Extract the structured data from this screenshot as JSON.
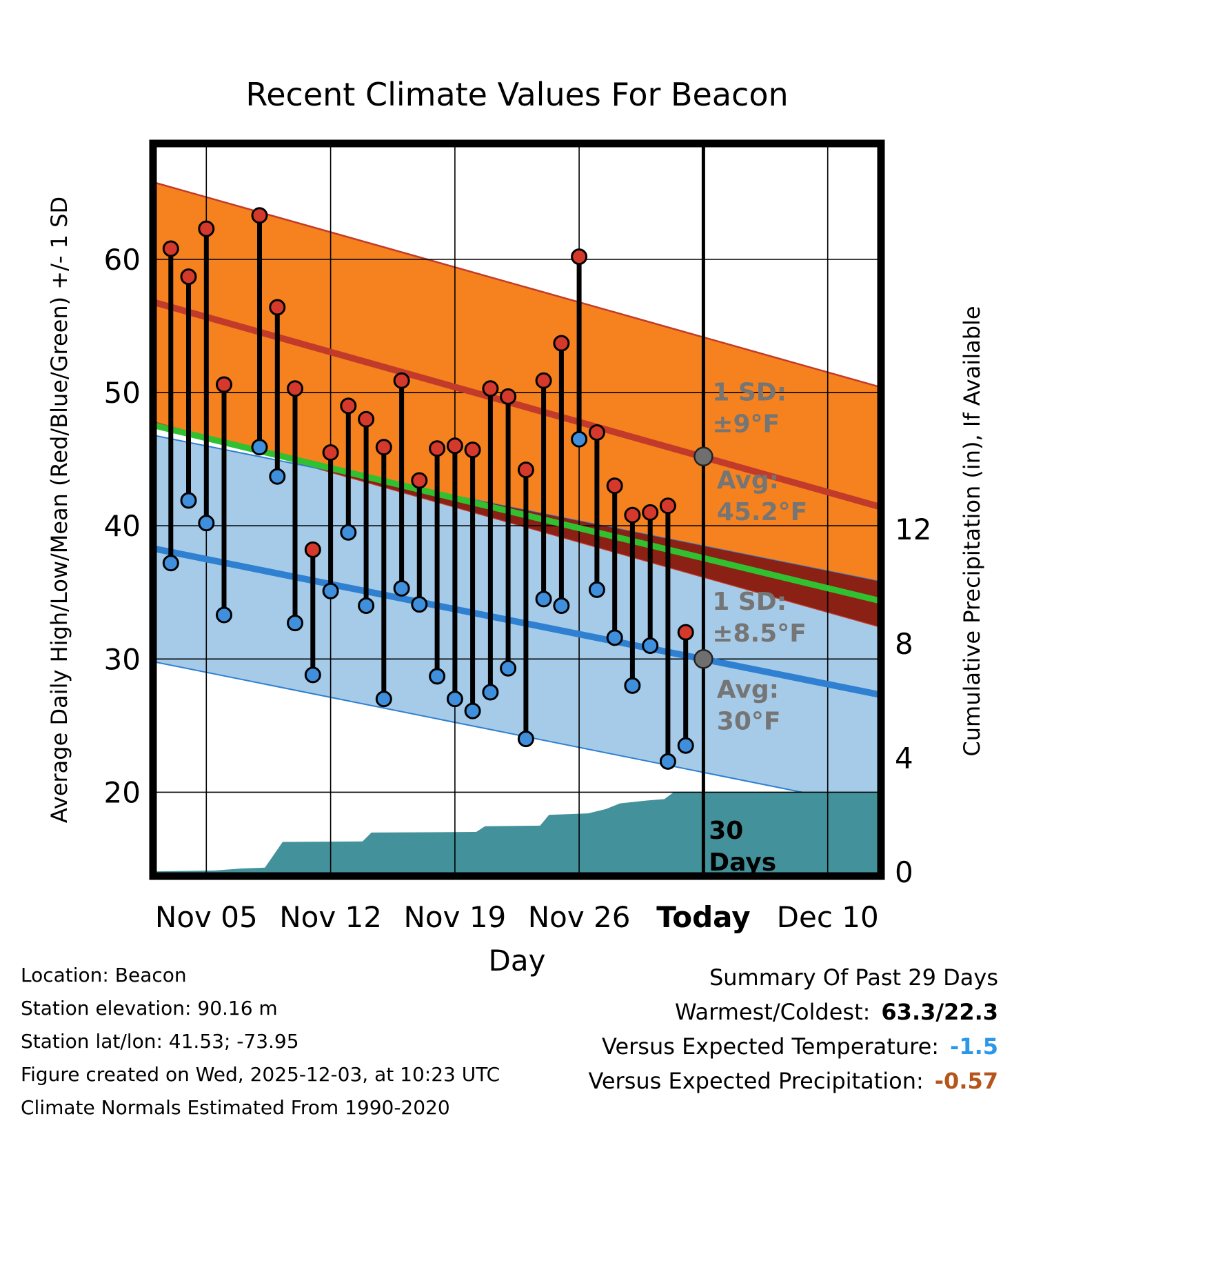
{
  "title": "Recent Climate Values For Beacon",
  "axes": {
    "left_label": "Average Daily High/Low/Mean (Red/Blue/Green) +/- 1 SD",
    "right_label": "Cumulative Precipitation (in), If Available",
    "x_label": "Day"
  },
  "footer": {
    "location": "Location: Beacon",
    "elevation": "Station elevation: 90.16 m",
    "latlon": "Station lat/lon: 41.53; -73.95",
    "created": "Figure created on Wed, 2025-12-03, at 10:23 UTC",
    "normals_note": "Climate Normals Estimated From 1990-2020"
  },
  "summary": {
    "title": "Summary Of Past 29 Days",
    "warmest_label": "Warmest/Coldest:",
    "warmest_value": "63.3/22.3",
    "temp_label": "Versus Expected Temperature:",
    "temp_value": "-1.5",
    "precip_label": "Versus Expected Precipitation:",
    "precip_value": "-0.57"
  },
  "chart_data": {
    "type": "line",
    "title": "Recent Climate Values For Beacon",
    "xlabel": "Day",
    "ylabel_left": "Average Daily High/Low/Mean (Red/Blue/Green) +/- 1 SD",
    "ylabel_right": "Cumulative Precipitation (in), If Available",
    "x_domain": {
      "start_date": "Nov 02",
      "end_date": "Dec 13",
      "days": 41,
      "today_day": 31
    },
    "x_ticks": [
      {
        "label": "Nov 05",
        "day": 3,
        "bold": false
      },
      {
        "label": "Nov 12",
        "day": 10,
        "bold": false
      },
      {
        "label": "Nov 19",
        "day": 17,
        "bold": false
      },
      {
        "label": "Nov 26",
        "day": 24,
        "bold": false
      },
      {
        "label": "Today",
        "day": 31,
        "bold": true
      },
      {
        "label": "Dec 10",
        "day": 38,
        "bold": false
      }
    ],
    "y_left": {
      "ticks": [
        20,
        30,
        40,
        50,
        60
      ],
      "range": [
        13.7,
        68.7
      ],
      "unit": "°F"
    },
    "y_right": {
      "ticks": [
        0,
        4,
        8,
        12
      ],
      "unit": "in"
    },
    "normals": {
      "high_avg_f": {
        "days": [
          0,
          41
        ],
        "values": [
          56.8,
          41.4
        ],
        "sd": 9,
        "today_value": 45.2
      },
      "low_avg_f": {
        "days": [
          0,
          41
        ],
        "values": [
          38.3,
          27.3
        ],
        "sd": 8.5,
        "today_value": 30
      },
      "source": "Climate Normals Estimated From 1990-2020"
    },
    "daily_temps_f": [
      {
        "date": "Nov 03",
        "day": 1,
        "high": 60.8,
        "low": 37.2
      },
      {
        "date": "Nov 04",
        "day": 2,
        "high": 58.7,
        "low": 41.9
      },
      {
        "date": "Nov 05",
        "day": 3,
        "high": 62.3,
        "low": 40.2
      },
      {
        "date": "Nov 06",
        "day": 4,
        "high": 50.6,
        "low": 33.3
      },
      {
        "date": "Nov 08",
        "day": 6,
        "high": 63.3,
        "low": 45.9
      },
      {
        "date": "Nov 09",
        "day": 7,
        "high": 56.4,
        "low": 43.7
      },
      {
        "date": "Nov 10",
        "day": 8,
        "high": 50.3,
        "low": 32.7
      },
      {
        "date": "Nov 11",
        "day": 9,
        "high": 38.2,
        "low": 28.8
      },
      {
        "date": "Nov 12",
        "day": 10,
        "high": 45.5,
        "low": 35.1
      },
      {
        "date": "Nov 13",
        "day": 11,
        "high": 49.0,
        "low": 39.5
      },
      {
        "date": "Nov 14",
        "day": 12,
        "high": 48.0,
        "low": 34.0
      },
      {
        "date": "Nov 15",
        "day": 13,
        "high": 45.9,
        "low": 27.0
      },
      {
        "date": "Nov 16",
        "day": 14,
        "high": 50.9,
        "low": 35.3
      },
      {
        "date": "Nov 17",
        "day": 15,
        "high": 43.4,
        "low": 34.1
      },
      {
        "date": "Nov 18",
        "day": 16,
        "high": 45.8,
        "low": 28.7
      },
      {
        "date": "Nov 19",
        "day": 17,
        "high": 46.0,
        "low": 27.0
      },
      {
        "date": "Nov 20",
        "day": 18,
        "high": 45.7,
        "low": 26.1
      },
      {
        "date": "Nov 21",
        "day": 19,
        "high": 50.3,
        "low": 27.5
      },
      {
        "date": "Nov 22",
        "day": 20,
        "high": 49.7,
        "low": 29.3
      },
      {
        "date": "Nov 23",
        "day": 21,
        "high": 44.2,
        "low": 24.0
      },
      {
        "date": "Nov 24",
        "day": 22,
        "high": 50.9,
        "low": 34.5
      },
      {
        "date": "Nov 25",
        "day": 23,
        "high": 53.7,
        "low": 34.0
      },
      {
        "date": "Nov 26",
        "day": 24,
        "high": 60.2,
        "low": 46.5
      },
      {
        "date": "Nov 27",
        "day": 25,
        "high": 47.0,
        "low": 35.2
      },
      {
        "date": "Nov 28",
        "day": 26,
        "high": 43.0,
        "low": 31.6
      },
      {
        "date": "Nov 29",
        "day": 27,
        "high": 40.8,
        "low": 28.0
      },
      {
        "date": "Nov 30",
        "day": 28,
        "high": 41.0,
        "low": 31.0
      },
      {
        "date": "Dec 01",
        "day": 29,
        "high": 41.5,
        "low": 22.3
      },
      {
        "date": "Dec 02",
        "day": 30,
        "high": 32.0,
        "low": 23.5
      }
    ],
    "cumulative_precip_in": [
      {
        "day": 0,
        "value": 0.02
      },
      {
        "day": 3.5,
        "value": 0.05
      },
      {
        "day": 5,
        "value": 0.12
      },
      {
        "day": 6.3,
        "value": 0.15
      },
      {
        "day": 7.3,
        "value": 1.05
      },
      {
        "day": 11.8,
        "value": 1.07
      },
      {
        "day": 12.3,
        "value": 1.38
      },
      {
        "day": 18.2,
        "value": 1.4
      },
      {
        "day": 18.7,
        "value": 1.6
      },
      {
        "day": 21.8,
        "value": 1.62
      },
      {
        "day": 22.3,
        "value": 2.0
      },
      {
        "day": 24.5,
        "value": 2.05
      },
      {
        "day": 25.5,
        "value": 2.2
      },
      {
        "day": 26.3,
        "value": 2.4
      },
      {
        "day": 27.8,
        "value": 2.5
      },
      {
        "day": 28.8,
        "value": 2.55
      },
      {
        "day": 29.3,
        "value": 2.78
      },
      {
        "day": 41,
        "value": 2.78
      }
    ],
    "avg_markers": [
      {
        "day": 31,
        "temp": 45.2
      },
      {
        "day": 31,
        "temp": 30
      }
    ],
    "annotations": [
      {
        "day": 31.5,
        "temp": 49.4,
        "lines": [
          "1 SD:",
          "±9°F"
        ],
        "style": "gray"
      },
      {
        "day": 31.75,
        "temp": 42.8,
        "lines": [
          "Avg:",
          "45.2°F"
        ],
        "style": "gray"
      },
      {
        "day": 31.5,
        "temp": 33.7,
        "lines": [
          "1 SD:",
          "±8.5°F"
        ],
        "style": "gray"
      },
      {
        "day": 31.75,
        "temp": 27.1,
        "lines": [
          "Avg:",
          "30°F"
        ],
        "style": "gray"
      },
      {
        "day": 31.3,
        "temp": 16.5,
        "lines": [
          "30",
          "Days"
        ],
        "style": "black"
      }
    ],
    "colors": {
      "high_band": "#F5821E",
      "high_line": "#C23B2A",
      "high_dot": "#D5392C",
      "low_band": "#A6CBE8",
      "low_line": "#2F80D0",
      "low_dot": "#3F8FDC",
      "mean_line": "#30C030",
      "band_overlap": "#8B2015",
      "precip_fill": "#43929B",
      "marker_gray": "#6F6F6F",
      "annotation_gray": "#757575",
      "anomaly_temp": "#2A97E8",
      "anomaly_precip": "#B5541B"
    }
  }
}
